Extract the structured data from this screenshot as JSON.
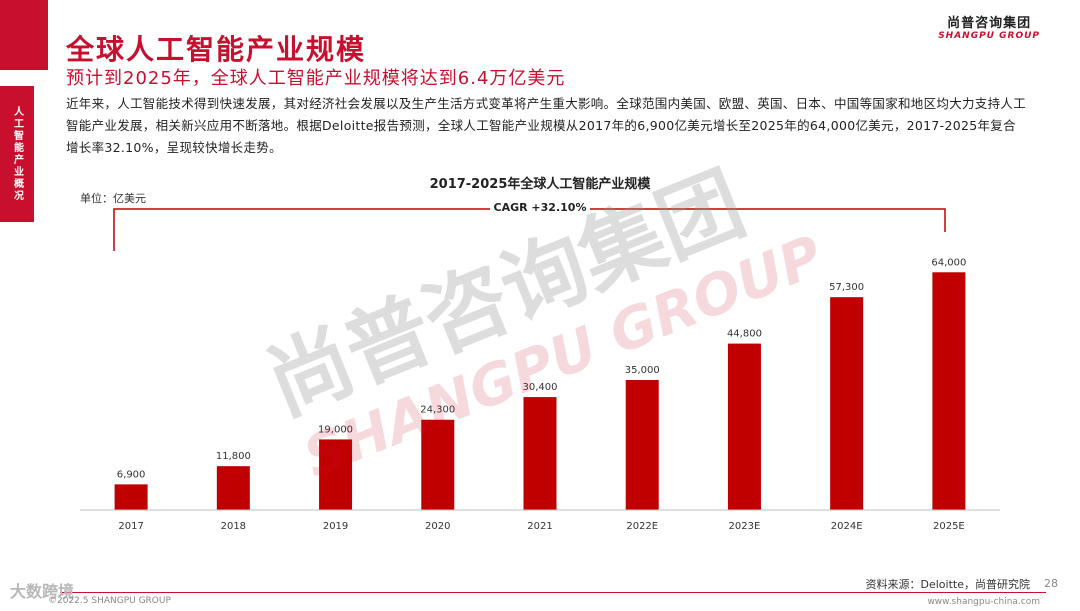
{
  "side_tab": "人工智能产业概况",
  "title": "全球人工智能产业规模",
  "subtitle": "预计到2025年，全球人工智能产业规模将达到6.4万亿美元",
  "brand": {
    "cn": "尚普咨询集团",
    "en": "SHANGPU GROUP"
  },
  "intro": "近年来，人工智能技术得到快速发展，其对经济社会发展以及生产生活方式变革将产生重大影响。全球范围内美国、欧盟、英国、日本、中国等国家和地区均大力支持人工智能产业发展，相关新兴应用不断落地。根据Deloitte报告预测，全球人工智能产业规模从2017年的6,900亿美元增长至2025年的64,000亿美元，2017-2025年复合增长率32.10%，呈现较快增长走势。",
  "chart_data": {
    "type": "bar",
    "title": "2017-2025年全球人工智能产业规模",
    "unit_label": "单位：亿美元",
    "annotation": "CAGR +32.10%",
    "categories": [
      "2017",
      "2018",
      "2019",
      "2020",
      "2021",
      "2022E",
      "2023E",
      "2024E",
      "2025E"
    ],
    "values": [
      6900,
      11800,
      19000,
      24300,
      30400,
      35000,
      44800,
      57300,
      64000
    ],
    "value_labels": [
      "6,900",
      "11,800",
      "19,000",
      "24,300",
      "30,400",
      "35,000",
      "44,800",
      "57,300",
      "64,000"
    ],
    "ylim": [
      0,
      70000
    ],
    "grid": false,
    "bar_color": "#c00000"
  },
  "watermark": {
    "cn": "尚普咨询集团",
    "en": "SHANGPU GROUP"
  },
  "footer": {
    "source": "资料来源：Deloitte，尚普研究院",
    "page": "28",
    "copyright": "©2022.5 SHANGPU GROUP",
    "website": "www.shangpu-china.com",
    "logo_text": "大数跨境"
  }
}
